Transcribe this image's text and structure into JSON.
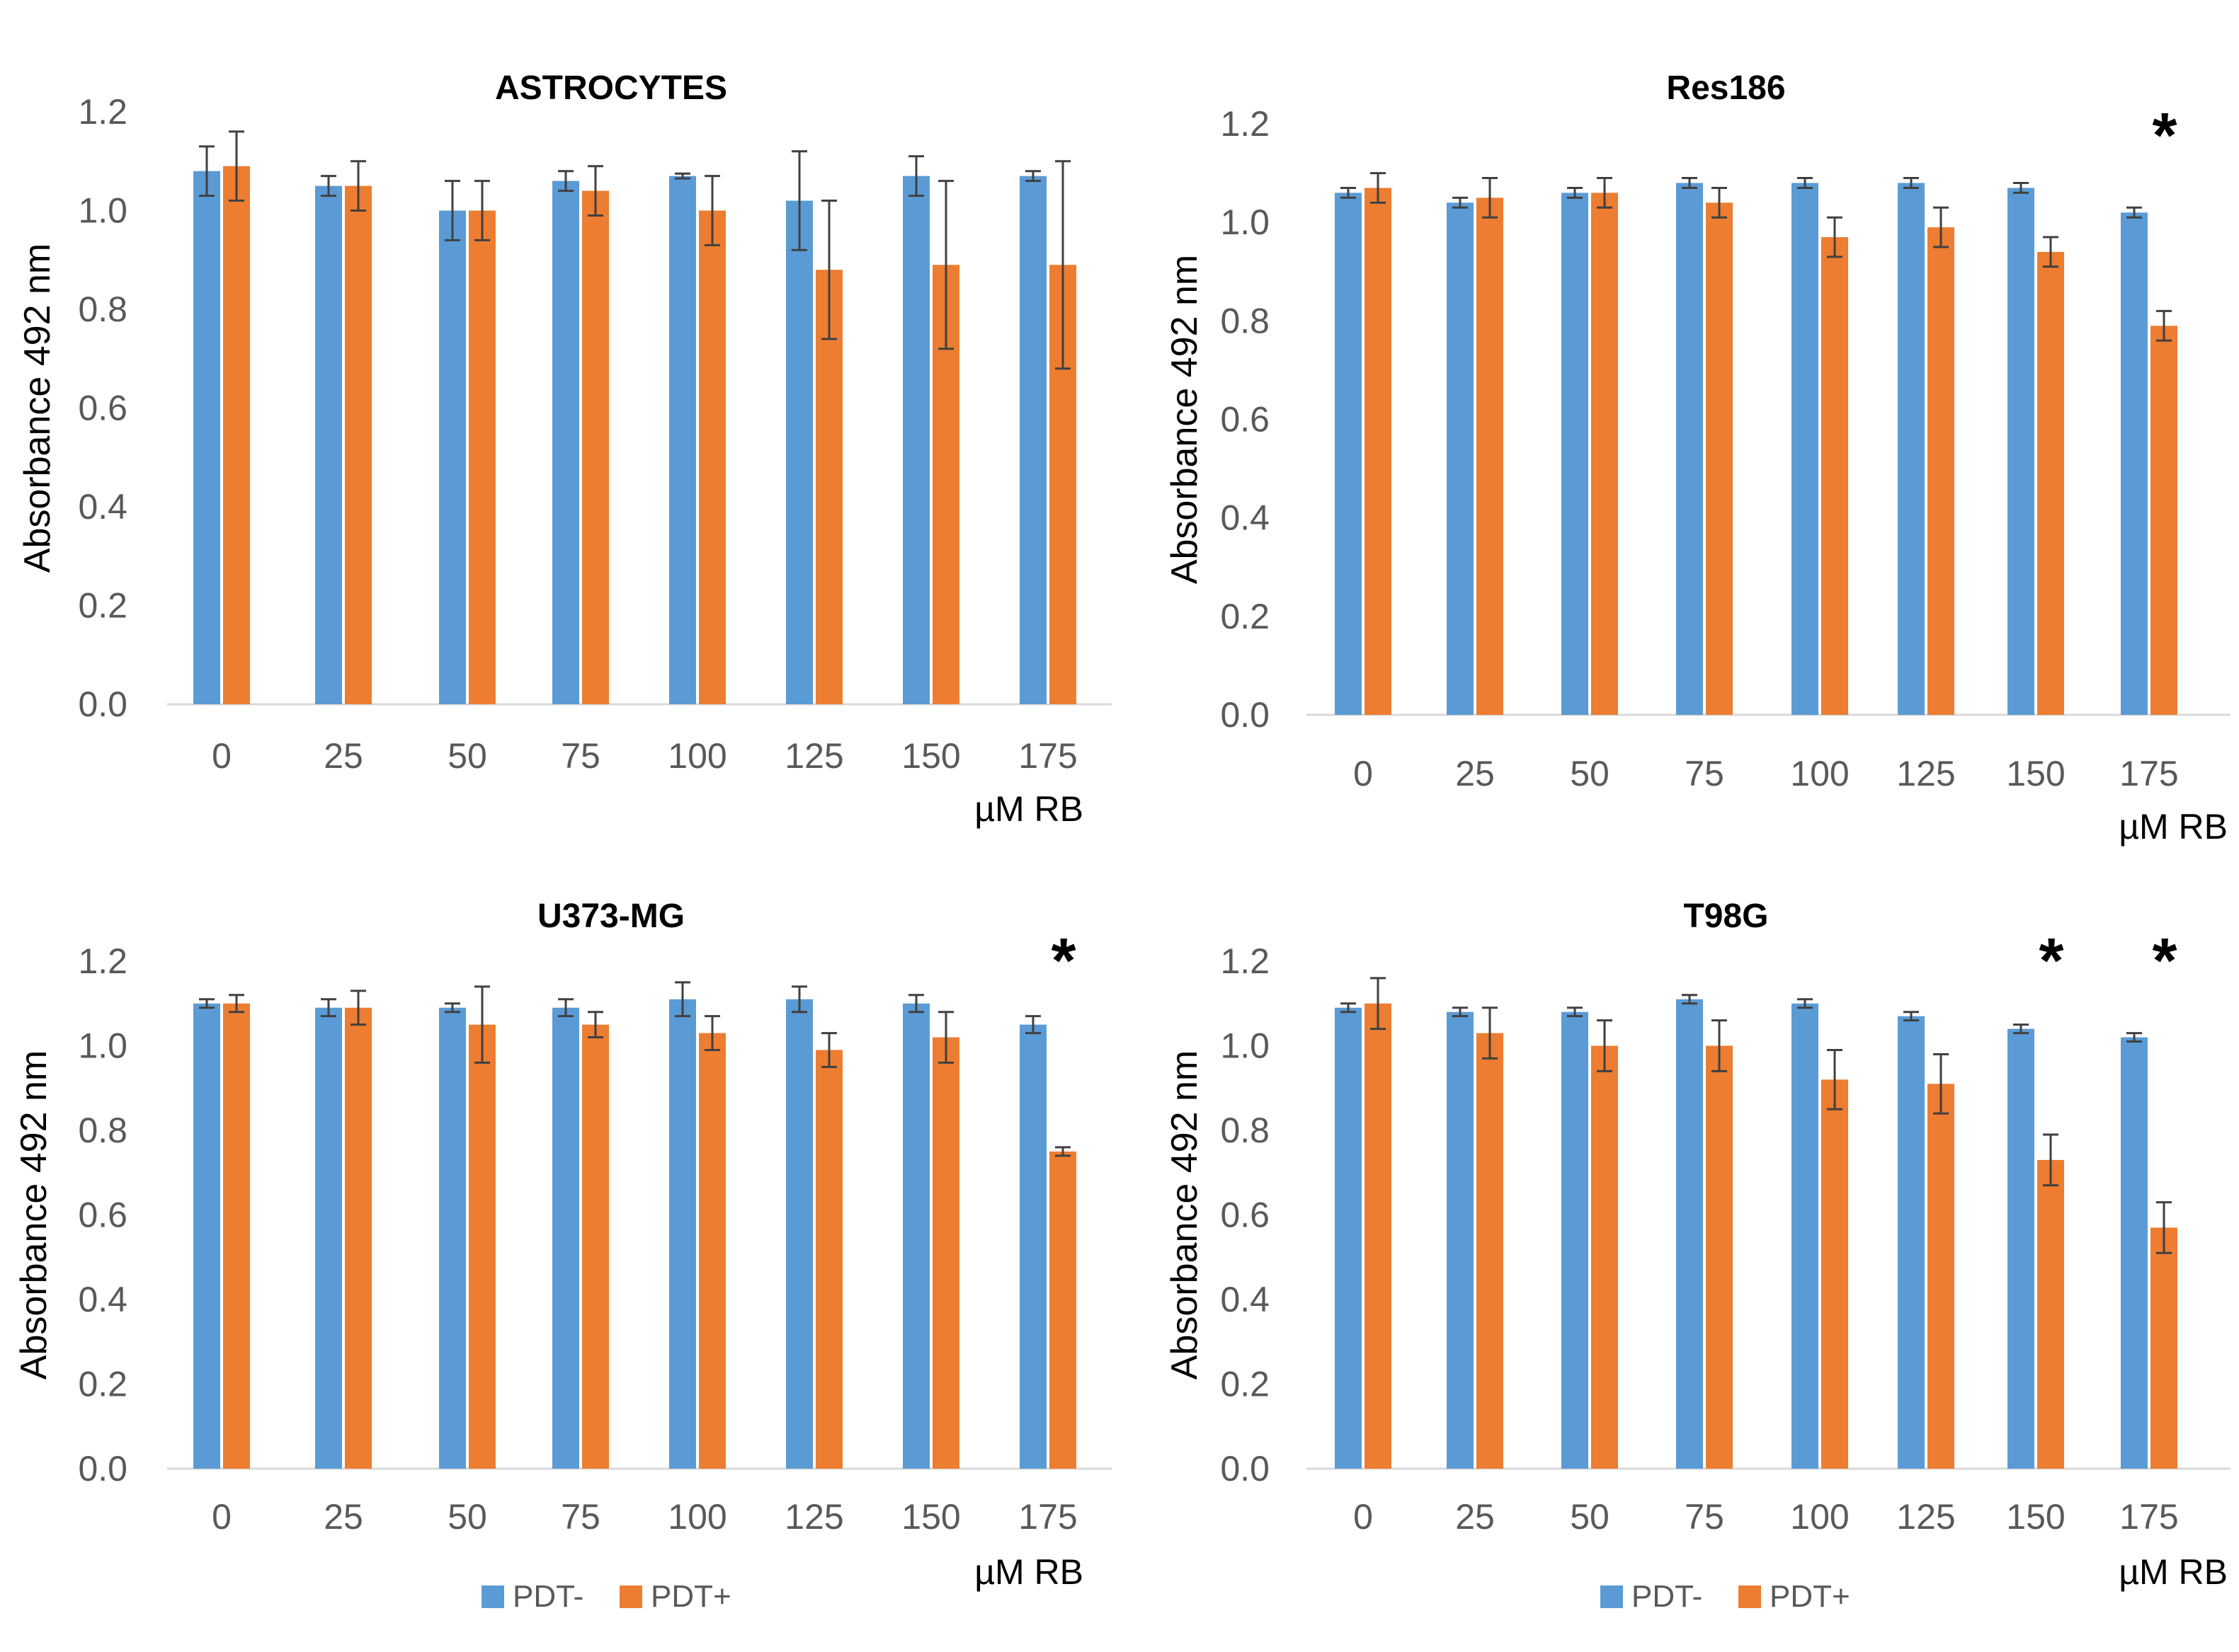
{
  "colors": {
    "pdt_minus": "#5B9BD5",
    "pdt_plus": "#ED7D31",
    "axis": "#D9D9D9",
    "error": "#404040"
  },
  "chart_data": [
    {
      "type": "bar",
      "title": "ASTROCYTES",
      "categories": [
        "0",
        "25",
        "50",
        "75",
        "100",
        "125",
        "150",
        "175"
      ],
      "xlabel": "µM RB",
      "ylabel": "Absorbance 492 nm",
      "ylim": [
        0,
        1.2
      ],
      "yticks": [
        "0.0",
        "0.2",
        "0.4",
        "0.6",
        "0.8",
        "1.0",
        "1.2"
      ],
      "series": [
        {
          "name": "PDT-",
          "values": [
            1.08,
            1.05,
            1.0,
            1.06,
            1.07,
            1.02,
            1.07,
            1.07
          ],
          "errors": [
            0.05,
            0.02,
            0.06,
            0.02,
            0.005,
            0.1,
            0.04,
            0.01
          ]
        },
        {
          "name": "PDT+",
          "values": [
            1.09,
            1.05,
            1.0,
            1.04,
            1.0,
            0.88,
            0.89,
            0.89
          ],
          "errors": [
            0.07,
            0.05,
            0.06,
            0.05,
            0.07,
            0.14,
            0.17,
            0.21
          ]
        }
      ],
      "significant": [],
      "annotation": "*",
      "legend": "none"
    },
    {
      "type": "bar",
      "title": "Res186",
      "categories": [
        "0",
        "25",
        "50",
        "75",
        "100",
        "125",
        "150",
        "175"
      ],
      "xlabel": "µM RB",
      "ylabel": "Absorbance 492 nm",
      "ylim": [
        0,
        1.2
      ],
      "yticks": [
        "0.0",
        "0.2",
        "0.4",
        "0.6",
        "0.8",
        "1.0",
        "1.2"
      ],
      "series": [
        {
          "name": "PDT-",
          "values": [
            1.06,
            1.04,
            1.06,
            1.08,
            1.08,
            1.08,
            1.07,
            1.02
          ],
          "errors": [
            0.01,
            0.01,
            0.01,
            0.01,
            0.01,
            0.01,
            0.01,
            0.01
          ]
        },
        {
          "name": "PDT+",
          "values": [
            1.07,
            1.05,
            1.06,
            1.04,
            0.97,
            0.99,
            0.94,
            0.79
          ],
          "errors": [
            0.03,
            0.04,
            0.03,
            0.03,
            0.04,
            0.04,
            0.03,
            0.03
          ]
        }
      ],
      "significant": [
        7
      ],
      "annotation": "*",
      "legend": "none"
    },
    {
      "type": "bar",
      "title": "U373-MG",
      "categories": [
        "0",
        "25",
        "50",
        "75",
        "100",
        "125",
        "150",
        "175"
      ],
      "xlabel": "µM RB",
      "ylabel": "Absorbance 492 nm",
      "ylim": [
        0,
        1.2
      ],
      "yticks": [
        "0.0",
        "0.2",
        "0.4",
        "0.6",
        "0.8",
        "1.0",
        "1.2"
      ],
      "series": [
        {
          "name": "PDT-",
          "values": [
            1.1,
            1.09,
            1.09,
            1.09,
            1.11,
            1.11,
            1.1,
            1.05
          ],
          "errors": [
            0.01,
            0.02,
            0.01,
            0.02,
            0.04,
            0.03,
            0.02,
            0.02
          ]
        },
        {
          "name": "PDT+",
          "values": [
            1.1,
            1.09,
            1.05,
            1.05,
            1.03,
            0.99,
            1.02,
            0.75
          ],
          "errors": [
            0.02,
            0.04,
            0.09,
            0.03,
            0.04,
            0.04,
            0.06,
            0.01
          ]
        }
      ],
      "significant": [
        7
      ],
      "annotation": "*",
      "legend": "bottom"
    },
    {
      "type": "bar",
      "title": "T98G",
      "categories": [
        "0",
        "25",
        "50",
        "75",
        "100",
        "125",
        "150",
        "175"
      ],
      "xlabel": "µM RB",
      "ylabel": "Absorbance 492 nm",
      "ylim": [
        0,
        1.2
      ],
      "yticks": [
        "0.0",
        "0.2",
        "0.4",
        "0.6",
        "0.8",
        "1.0",
        "1.2"
      ],
      "series": [
        {
          "name": "PDT-",
          "values": [
            1.09,
            1.08,
            1.08,
            1.11,
            1.1,
            1.07,
            1.04,
            1.02
          ],
          "errors": [
            0.01,
            0.01,
            0.01,
            0.01,
            0.01,
            0.01,
            0.01,
            0.01
          ]
        },
        {
          "name": "PDT+",
          "values": [
            1.1,
            1.03,
            1.0,
            1.0,
            0.92,
            0.91,
            0.73,
            0.57
          ],
          "errors": [
            0.06,
            0.06,
            0.06,
            0.06,
            0.07,
            0.07,
            0.06,
            0.06
          ]
        }
      ],
      "significant": [
        6,
        7
      ],
      "annotation": "*",
      "legend": "bottom"
    }
  ]
}
